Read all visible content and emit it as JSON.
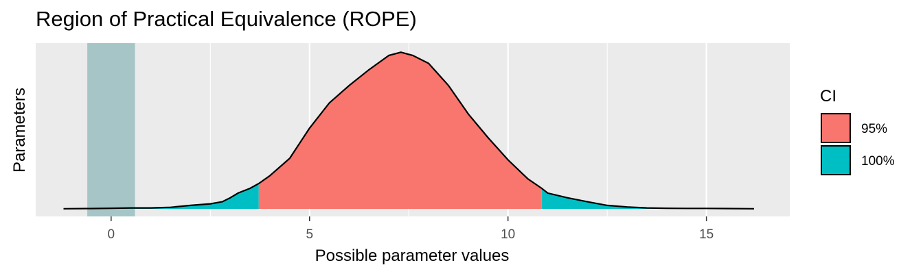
{
  "chart_data": {
    "type": "area",
    "title": "Region of Practical Equivalence (ROPE)",
    "xlabel": "Possible parameter values",
    "ylabel": "Parameters",
    "xlim": [
      -1.9,
      17.1
    ],
    "x_ticks": [
      0,
      5,
      10,
      15
    ],
    "x_tick_labels": [
      "0",
      "5",
      "10",
      "15"
    ],
    "grid": true,
    "rope_range": [
      -0.6,
      0.6
    ],
    "rope_color": "#a6c5c7",
    "ci_95_range": [
      3.72,
      10.85
    ],
    "legend": {
      "title": "CI",
      "position": "right",
      "entries": [
        {
          "label": "95%",
          "color": "#f8766d"
        },
        {
          "label": "100%",
          "color": "#00bfc4"
        }
      ]
    },
    "density": {
      "x": [
        -1.2,
        -0.5,
        0,
        0.5,
        1.0,
        1.5,
        2.0,
        2.5,
        2.8,
        3.0,
        3.2,
        3.5,
        3.72,
        4.0,
        4.5,
        5.0,
        5.5,
        6.0,
        6.5,
        7.0,
        7.3,
        7.6,
        8.0,
        8.5,
        9.0,
        9.5,
        10.0,
        10.5,
        10.85,
        11.0,
        11.5,
        12.0,
        12.5,
        13.0,
        13.5,
        14.0,
        14.5,
        15.0,
        15.5,
        16.2
      ],
      "y": [
        0.001,
        0.002,
        0.004,
        0.006,
        0.006,
        0.01,
        0.022,
        0.032,
        0.045,
        0.07,
        0.1,
        0.13,
        0.16,
        0.21,
        0.32,
        0.51,
        0.67,
        0.78,
        0.88,
        0.97,
        0.99,
        0.97,
        0.92,
        0.78,
        0.6,
        0.45,
        0.31,
        0.19,
        0.13,
        0.1,
        0.07,
        0.045,
        0.022,
        0.012,
        0.006,
        0.004,
        0.003,
        0.003,
        0.002,
        0.001
      ]
    }
  }
}
